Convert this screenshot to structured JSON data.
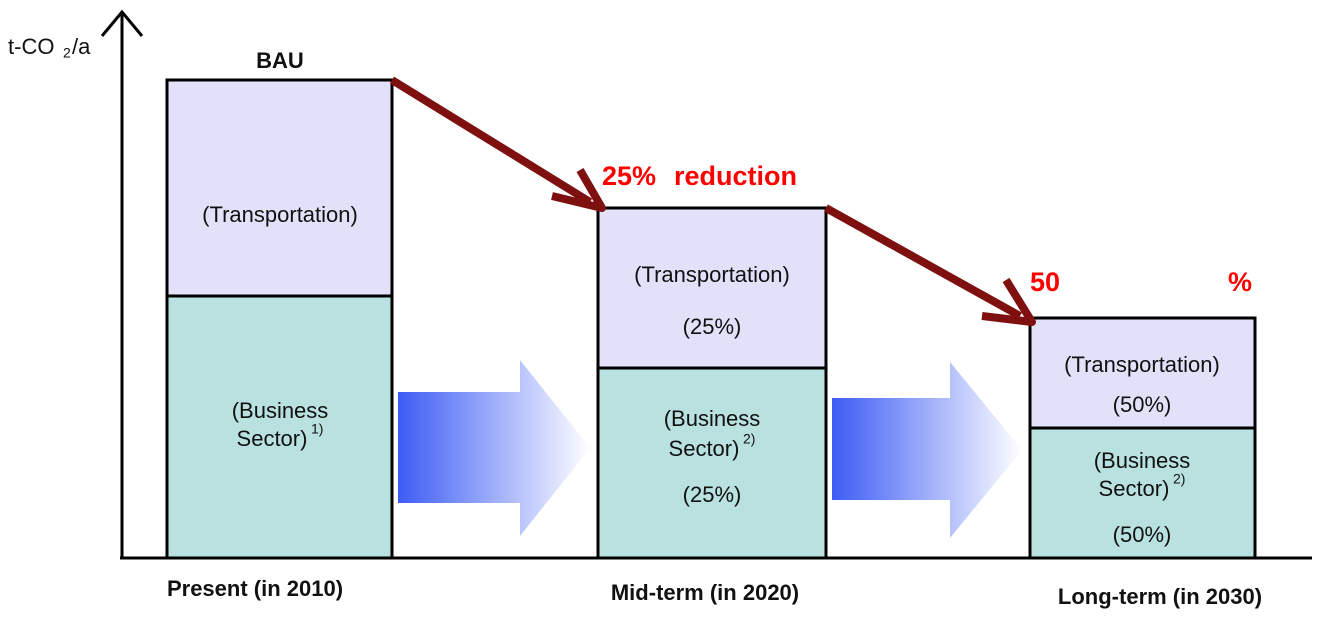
{
  "axis": {
    "unit": {
      "base": "t-CO",
      "subscript": "2",
      "suffix": "/a"
    }
  },
  "columns": [
    {
      "category": "Present (in 2010)",
      "header": [
        "BAU"
      ],
      "top": {
        "lines": [
          "(Transportation)"
        ]
      },
      "bottom": {
        "lines": [
          "(Business",
          "Sector)"
        ],
        "note": "1)"
      }
    },
    {
      "category": "Mid-term (in 2020)",
      "header": [
        "25%",
        "reduction"
      ],
      "top": {
        "lines": [
          "(Transportation)",
          "(25%)"
        ]
      },
      "bottom": {
        "lines": [
          "(Business",
          "Sector)",
          "(25%)"
        ],
        "note": "2)"
      }
    },
    {
      "category": "Long-term (in 2030)",
      "header": [
        "50",
        "%"
      ],
      "top": {
        "lines": [
          "(Transportation)",
          "(50%)"
        ]
      },
      "bottom": {
        "lines": [
          "(Business",
          "Sector)",
          "(50%)"
        ],
        "note": "2)"
      }
    }
  ]
}
